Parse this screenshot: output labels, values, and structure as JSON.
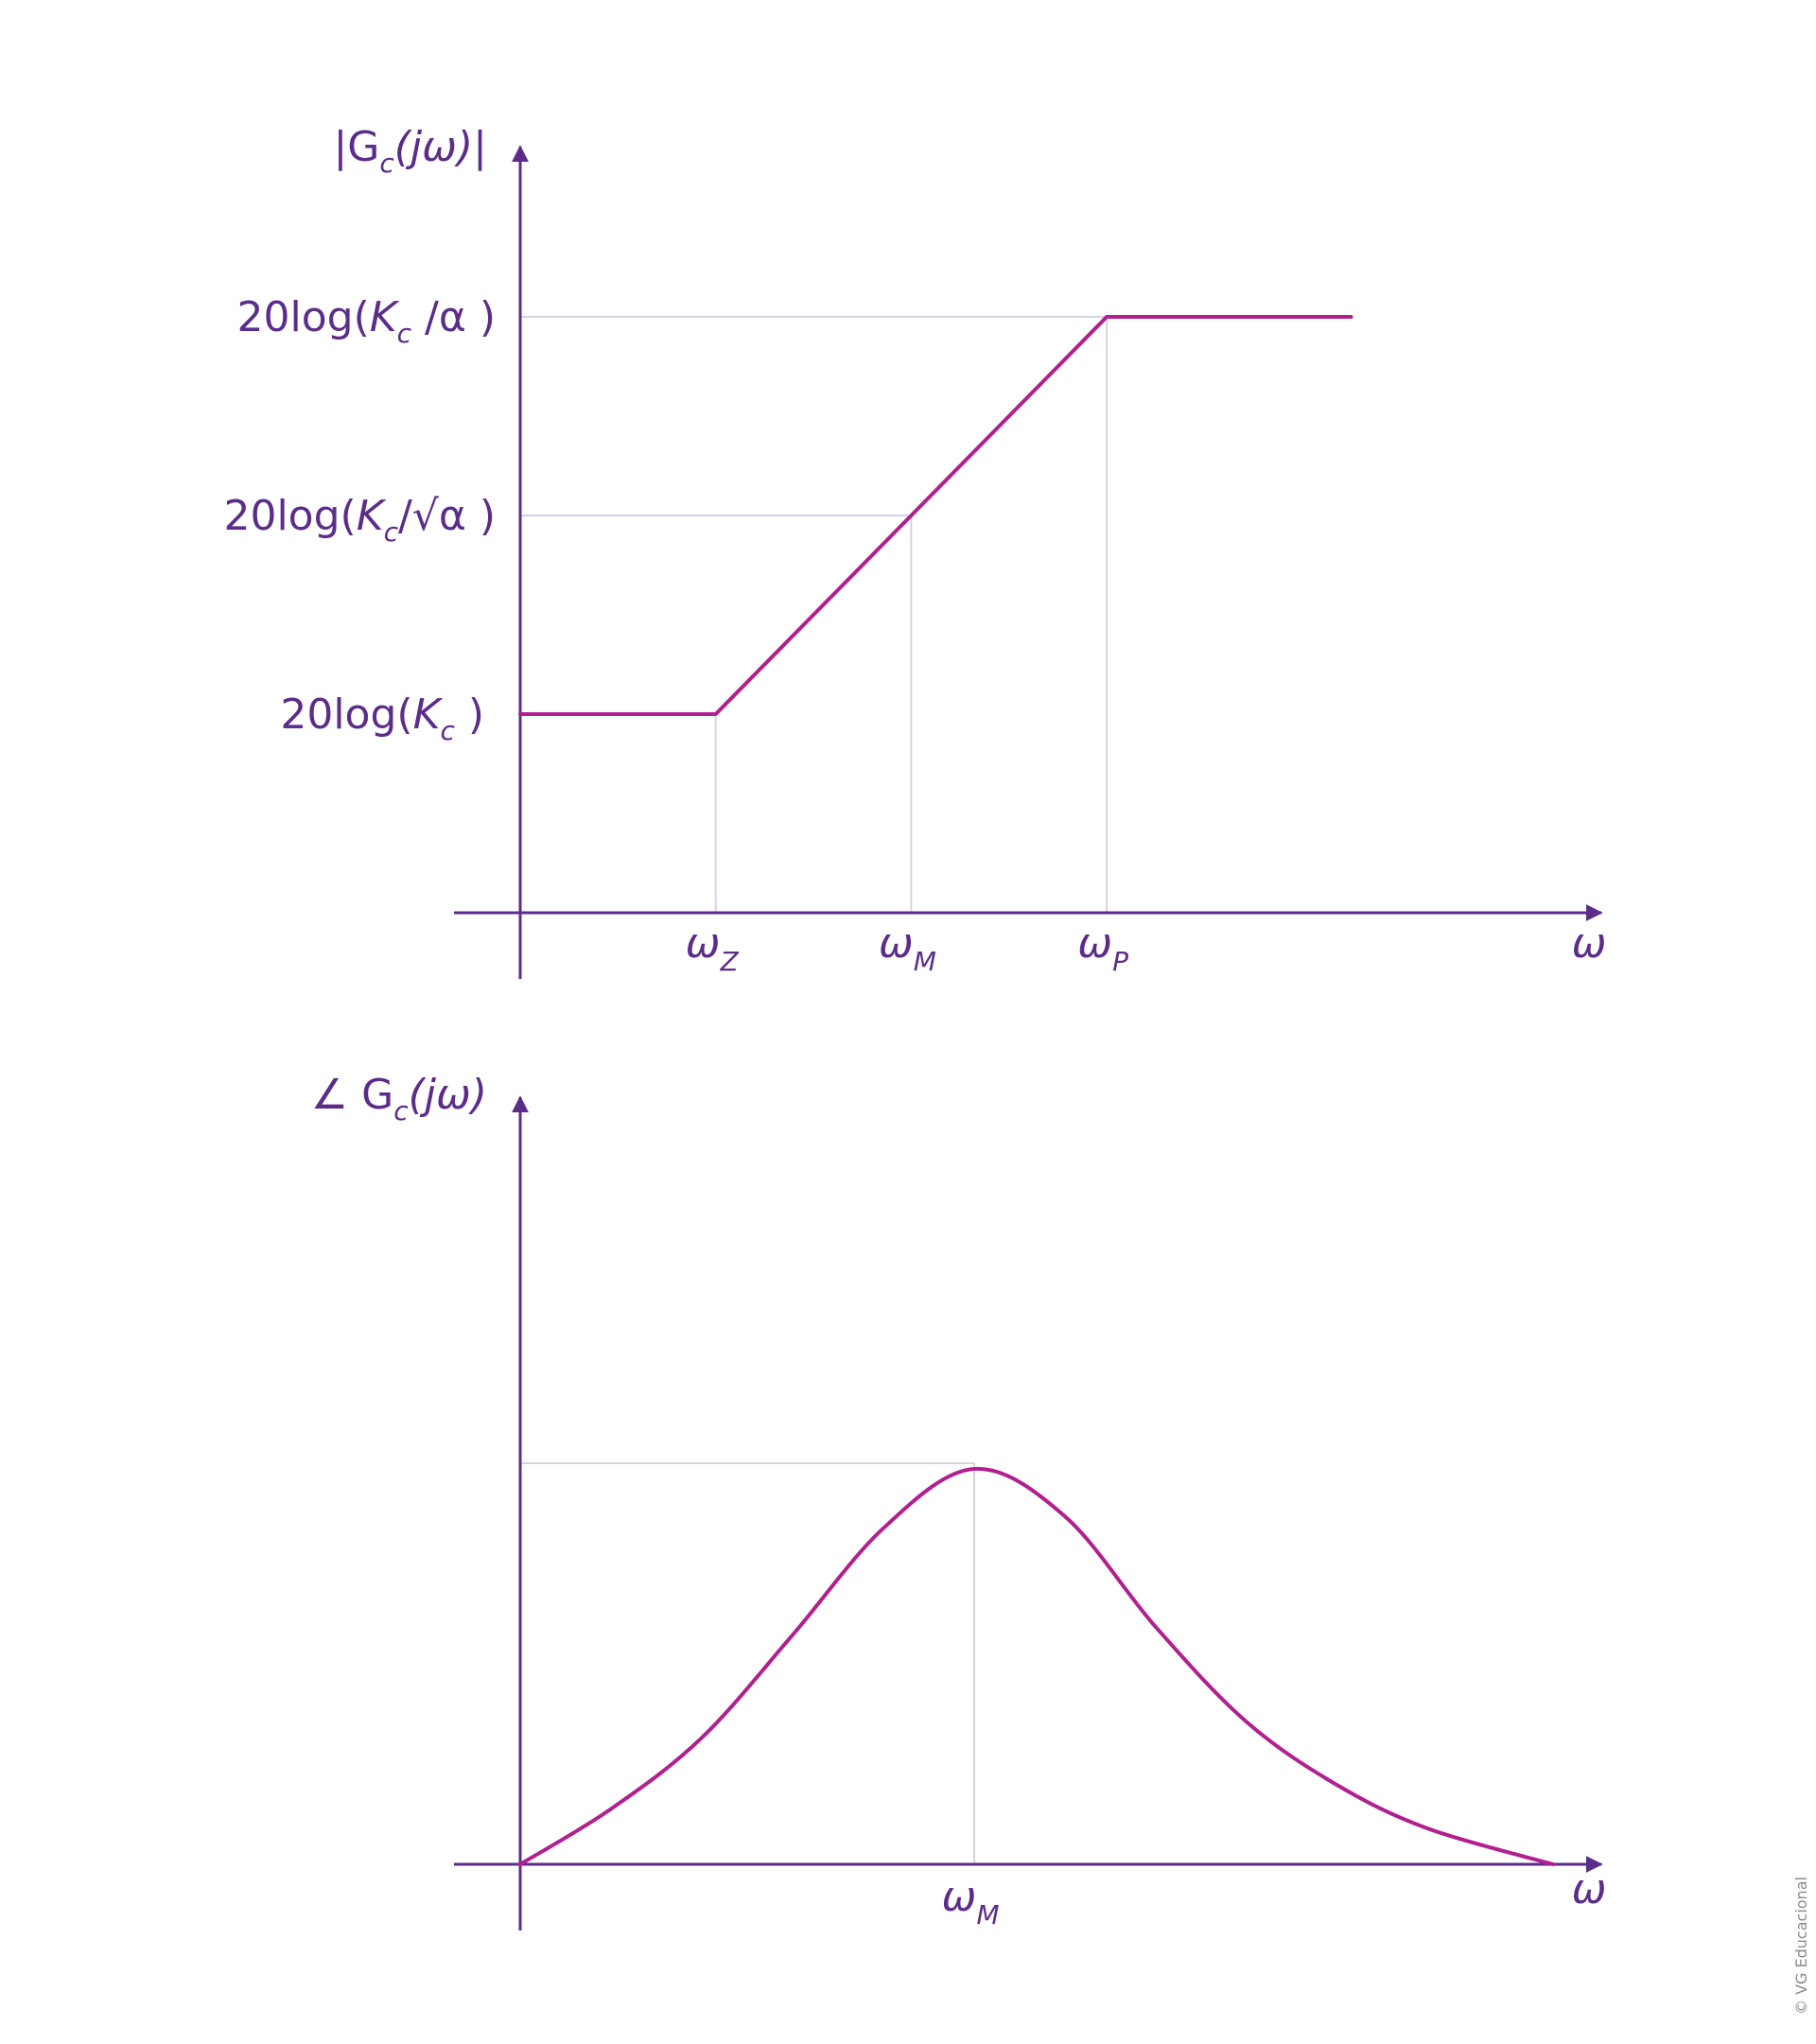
{
  "colors": {
    "axis": "#5b2d8a",
    "curve": "#b0208e",
    "guide": "#d6d2e3",
    "text": "#5b2d8a"
  },
  "chart_data": [
    {
      "type": "line",
      "title": "",
      "ylabel": {
        "main": "|G",
        "sub": "c",
        "tail": "(jω)|"
      },
      "xlabel": "ω",
      "x_ticks": [
        {
          "base": "ω",
          "sub": "Z"
        },
        {
          "base": "ω",
          "sub": "M"
        },
        {
          "base": "ω",
          "sub": "P"
        }
      ],
      "y_ticks": [
        {
          "pre": "20log(",
          "K": "K",
          "sub": "c",
          "post": " )"
        },
        {
          "pre": "20log(",
          "K": "K",
          "sub": "c",
          "post": "/√α )"
        },
        {
          "pre": "20log(",
          "K": "K",
          "sub": "c",
          "post": " /α )"
        }
      ],
      "x": [
        0,
        1,
        2,
        3,
        4.25
      ],
      "y": [
        1,
        1,
        2,
        3,
        3
      ],
      "xlim": [
        0,
        5.5
      ],
      "ylim": [
        0,
        4.2
      ],
      "grid": false
    },
    {
      "type": "line",
      "title": "",
      "ylabel": {
        "main": "∠ G",
        "sub": "c",
        "tail": "(jω)"
      },
      "xlabel": "ω",
      "x_ticks": [
        {
          "base": "ω",
          "sub": "M"
        }
      ],
      "x": [
        0.0,
        0.4,
        0.8,
        1.2,
        1.6,
        2.0,
        2.4,
        2.8,
        3.2,
        3.6,
        4.0,
        4.55
      ],
      "y": [
        0.0,
        0.14,
        0.32,
        0.58,
        0.85,
        1.0,
        0.88,
        0.6,
        0.36,
        0.2,
        0.09,
        0.0
      ],
      "peak_at": 2.0,
      "xlim": [
        0,
        5.5
      ],
      "ylim": [
        0,
        1.75
      ],
      "grid": false
    }
  ],
  "credit": "© VG Educacional"
}
